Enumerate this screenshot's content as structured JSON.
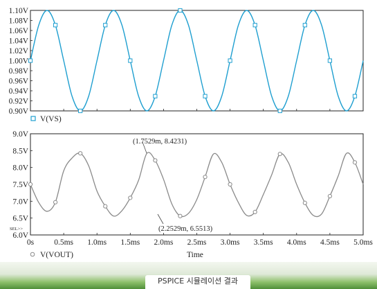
{
  "caption": "PSPICE 시뮬레이션 결과",
  "chart_data": [
    {
      "type": "line",
      "title": "",
      "xlabel": "",
      "ylabel": "",
      "ylim": [
        0.9,
        1.1
      ],
      "xlim": [
        0,
        5.0
      ],
      "y_ticks": [
        "0.90V",
        "0.92V",
        "0.94V",
        "0.96V",
        "0.98V",
        "1.00V",
        "1.02V",
        "1.04V",
        "1.06V",
        "1.08V",
        "1.10V"
      ],
      "series": [
        {
          "name": "V(VS)",
          "color": "#1f9fd0",
          "marker": "square",
          "x": [
            0,
            0.125,
            0.25,
            0.375,
            0.5,
            0.625,
            0.75,
            0.875,
            1.0,
            1.125,
            1.25,
            1.375,
            1.5,
            1.625,
            1.75,
            1.875,
            2.0,
            2.125,
            2.25,
            2.375,
            2.5,
            2.625,
            2.75,
            2.875,
            3.0,
            3.125,
            3.25,
            3.375,
            3.5,
            3.625,
            3.75,
            3.875,
            4.0,
            4.125,
            4.25,
            4.375,
            4.5,
            4.625,
            4.75,
            4.875,
            5.0
          ],
          "y": [
            1.0,
            1.0707,
            1.1,
            1.0707,
            1.0,
            0.9293,
            0.9,
            0.9293,
            1.0,
            1.0707,
            1.1,
            1.0707,
            1.0,
            0.9293,
            0.9,
            0.9293,
            1.0,
            1.0707,
            1.1,
            1.0707,
            1.0,
            0.9293,
            0.9,
            0.9293,
            1.0,
            1.0707,
            1.1,
            1.0707,
            1.0,
            0.9293,
            0.9,
            0.9293,
            1.0,
            1.0707,
            1.1,
            1.0707,
            1.0,
            0.9293,
            0.9,
            0.9293,
            1.0
          ]
        }
      ]
    },
    {
      "type": "line",
      "title": "",
      "xlabel": "Time",
      "ylabel": "",
      "ylim": [
        6.0,
        9.0
      ],
      "xlim": [
        0,
        5.0
      ],
      "y_ticks": [
        "6.0V",
        "6.5V",
        "7.0V",
        "7.5V",
        "8.0V",
        "8.5V",
        "9.0V"
      ],
      "x_ticks": [
        "0s",
        "0.5ms",
        "1.0ms",
        "1.5ms",
        "2.0ms",
        "2.5ms",
        "3.0ms",
        "3.5ms",
        "4.0ms",
        "4.5ms",
        "5.0ms"
      ],
      "series": [
        {
          "name": "V(VOUT)",
          "color": "#8a8a8a",
          "marker": "circle",
          "x": [
            0,
            0.125,
            0.25,
            0.375,
            0.5,
            0.625,
            0.75,
            0.875,
            1.0,
            1.125,
            1.25,
            1.375,
            1.5,
            1.625,
            1.75,
            1.875,
            2.0,
            2.125,
            2.25,
            2.375,
            2.5,
            2.625,
            2.75,
            2.875,
            3.0,
            3.125,
            3.25,
            3.375,
            3.5,
            3.625,
            3.75,
            3.875,
            4.0,
            4.125,
            4.25,
            4.375,
            4.5,
            4.625,
            4.75,
            4.875,
            5.0
          ],
          "y": [
            7.5,
            6.96,
            6.7,
            6.97,
            7.9,
            8.28,
            8.42,
            8.05,
            7.3,
            6.85,
            6.56,
            6.72,
            7.1,
            7.62,
            8.42,
            8.21,
            7.65,
            6.92,
            6.56,
            6.64,
            7.05,
            7.72,
            8.4,
            8.15,
            7.5,
            6.96,
            6.58,
            6.68,
            7.2,
            7.78,
            8.4,
            8.15,
            7.5,
            6.95,
            6.58,
            6.62,
            7.15,
            7.75,
            8.42,
            8.15,
            7.5
          ]
        }
      ],
      "annotations": [
        {
          "text": "(1.7529m, 8.4231)",
          "x": 1.7529,
          "y": 8.4231
        },
        {
          "text": "(2.2529m, 6.5513)",
          "x": 2.2529,
          "y": 6.5513
        }
      ],
      "sel_label": "SEL>>"
    }
  ]
}
